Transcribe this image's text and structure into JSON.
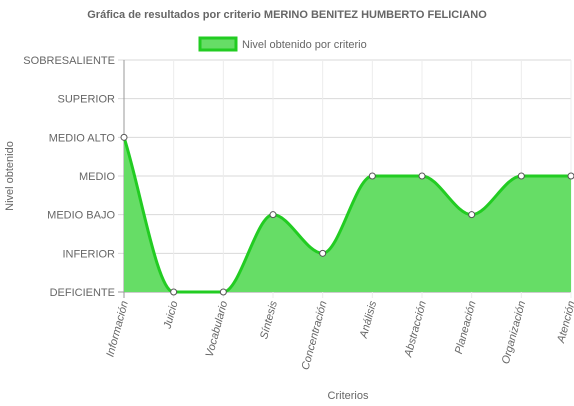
{
  "chart_data": {
    "type": "area",
    "title": "Gráfica de resultados por criterio MERINO BENITEZ HUMBERTO FELICIANO",
    "xlabel": "Criterios",
    "ylabel": "Nivel obtenido",
    "categories": [
      "Información",
      "Juicio",
      "Vocabulario",
      "Síntesis",
      "Concentración",
      "Análisis",
      "Abstracción",
      "Planeación",
      "Organización",
      "Atención"
    ],
    "y_levels": [
      "DEFICIENTE",
      "INFERIOR",
      "MEDIO BAJO",
      "MEDIO",
      "MEDIO ALTO",
      "SUPERIOR",
      "SOBRESALIENTE"
    ],
    "ylim": [
      0,
      6
    ],
    "series": [
      {
        "name": "Nivel obtenido por criterio",
        "values": [
          4,
          0,
          0,
          2,
          1,
          3,
          3,
          2,
          3,
          3
        ],
        "fill_color": "#66dd66",
        "line_color": "#22cc22"
      }
    ],
    "legend_position": "top",
    "grid": true
  }
}
